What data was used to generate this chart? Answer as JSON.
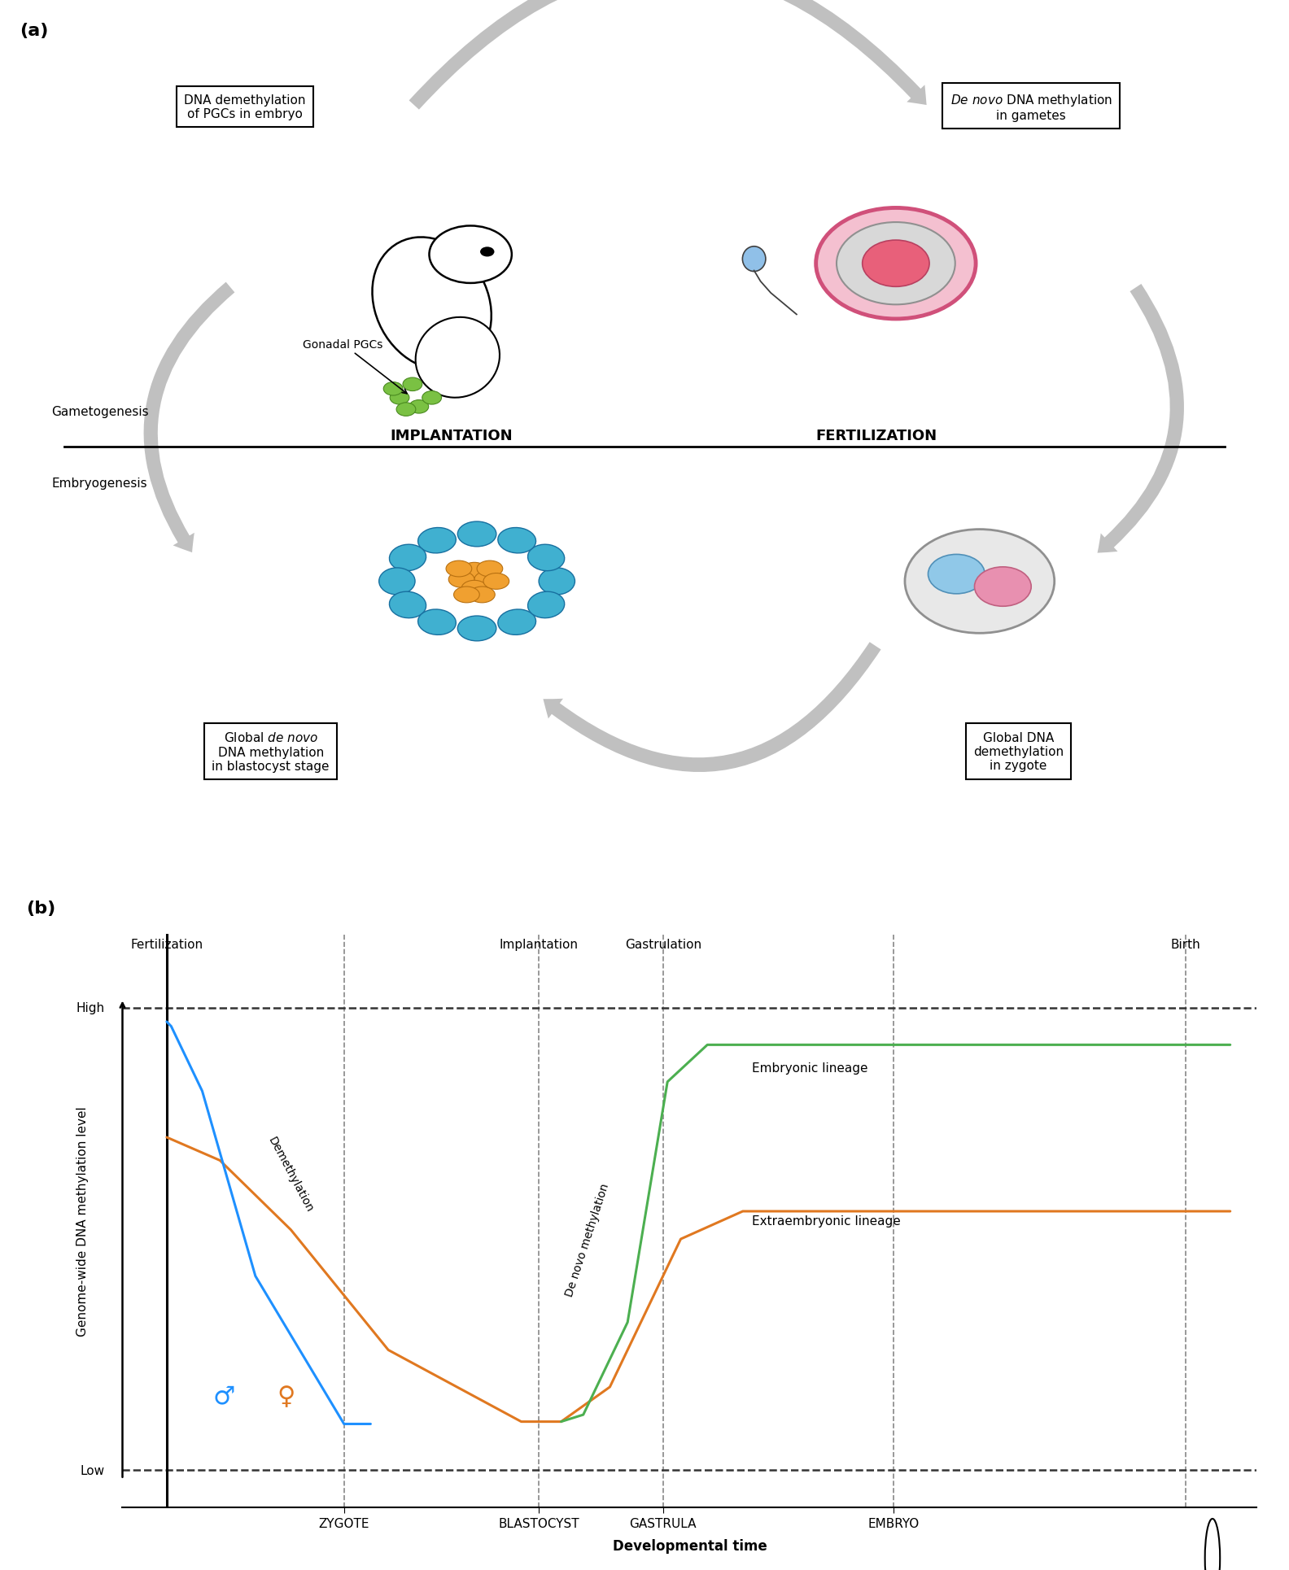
{
  "fig_width": 15.84,
  "fig_height": 19.31,
  "bg_color": "#ffffff",
  "panel_a_label": "(a)",
  "panel_b_label": "(b)",
  "label_gametogenesis": "Gametogenesis",
  "label_embryogenesis": "Embryogenesis",
  "label_implantation": "IMPLANTATION",
  "label_fertilization": "FERTILIZATION",
  "label_gonadal_pgcs": "Gonadal PGCs",
  "b_title_left": "Fertilization",
  "b_title_implantation": "Implantation",
  "b_title_gastrulation": "Gastrulation",
  "b_title_birth": "Birth",
  "b_ylabel": "Genome-wide DNA methylation level",
  "b_xlabel": "Developmental time",
  "b_ylabel_high": "High",
  "b_ylabel_low": "Low",
  "b_xticklabels": [
    "ZYGOTE",
    "BLASTOCYST",
    "GASTRULA",
    "EMBRYO"
  ],
  "b_line_demethylation": "Demethylation",
  "b_line_denovo": "De novo methylation",
  "b_embryonic_label": "Embryonic lineage",
  "b_extraembryonic_label": "Extraembryonic lineage",
  "color_blue_line": "#1e90ff",
  "color_orange_line": "#e07820",
  "color_green_line": "#4caf50",
  "gray_arrow": "#c0c0c0",
  "box_color": "#000000"
}
